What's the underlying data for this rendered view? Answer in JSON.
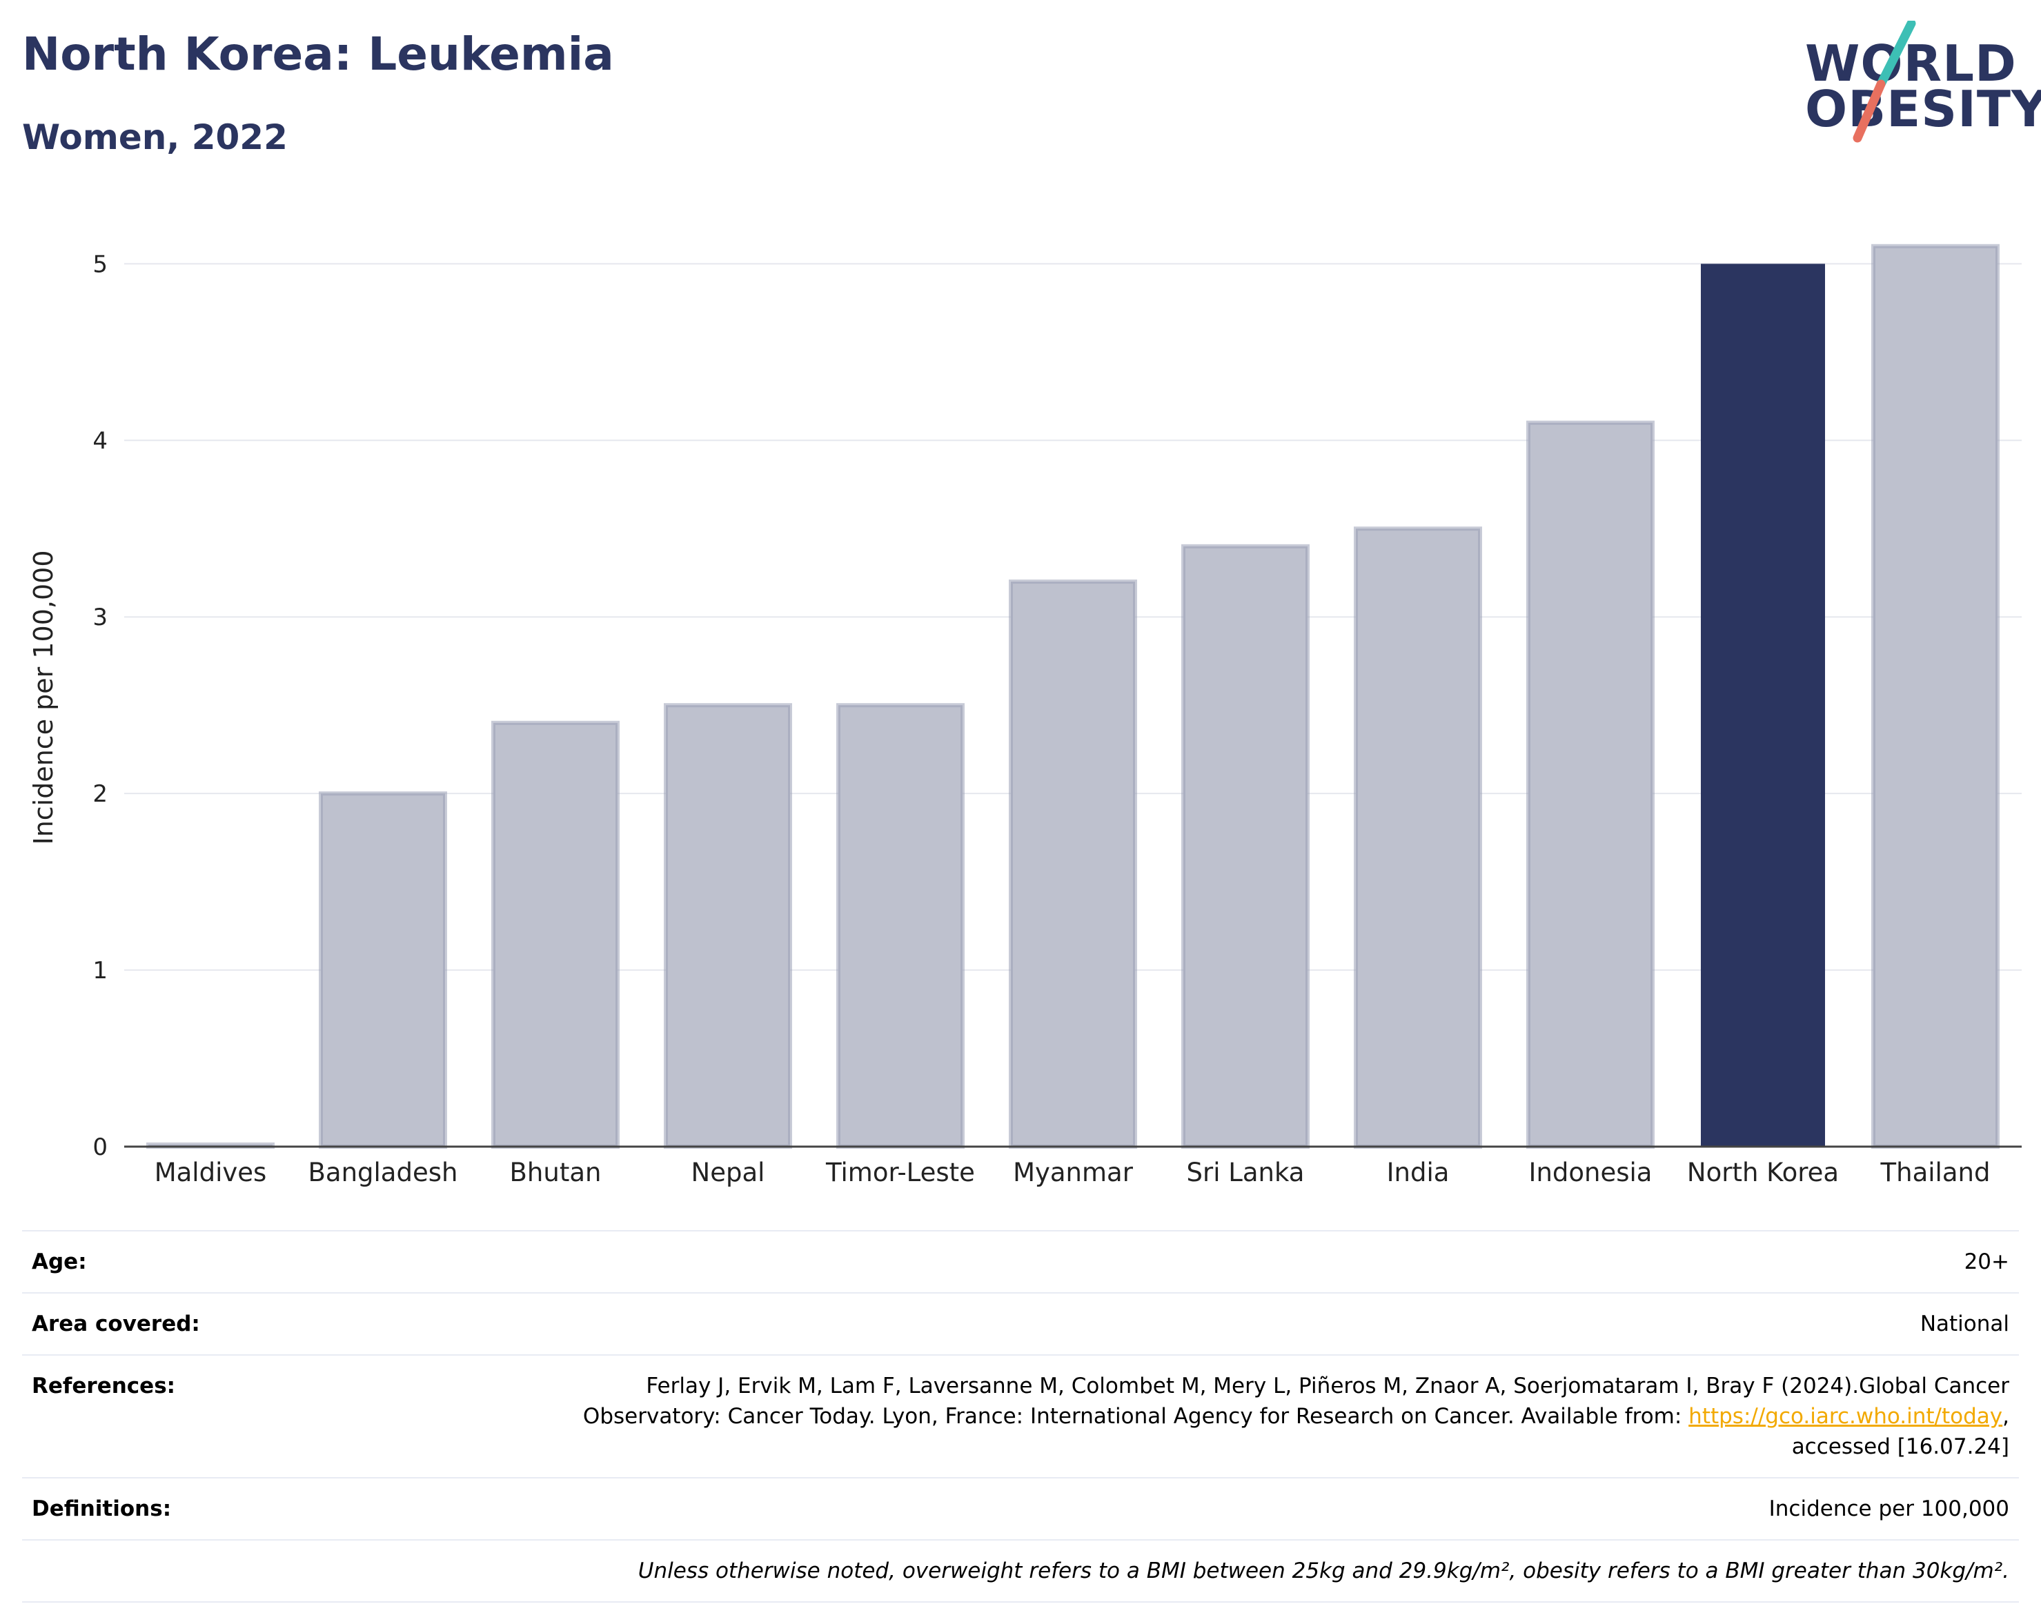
{
  "header": {
    "title": "North Korea: Leukemia",
    "subtitle": "Women, 2022"
  },
  "logo": {
    "line1": "WORLD",
    "line2": "OBESITY",
    "colors": {
      "text": "#2b3560",
      "slash_top": "#3dbfb5",
      "slash_bottom": "#e8705f"
    }
  },
  "chart_data": {
    "type": "bar",
    "categories": [
      "Maldives",
      "Bangladesh",
      "Bhutan",
      "Nepal",
      "Timor-Leste",
      "Myanmar",
      "Sri Lanka",
      "India",
      "Indonesia",
      "North Korea",
      "Thailand"
    ],
    "values": [
      0.0,
      2.0,
      2.4,
      2.5,
      2.5,
      3.2,
      3.4,
      3.5,
      4.1,
      5.0,
      5.1
    ],
    "highlight": "North Korea",
    "ylabel": "Incidence per 100,000",
    "xlabel": "",
    "ylim": [
      0,
      5.4
    ],
    "yticks": [
      "0",
      "1",
      "2",
      "3",
      "4",
      "5"
    ],
    "grid": true,
    "colors": {
      "bar": "#bec1ce",
      "bar_border": "#9aa0b6",
      "highlight": "#2b3560",
      "grid": "#e6e8ee",
      "axis": "#444444"
    }
  },
  "info": {
    "age": {
      "label": "Age:",
      "value": "20+"
    },
    "area": {
      "label": "Area covered:",
      "value": "National"
    },
    "references": {
      "label": "References:",
      "text1": "Ferlay J, Ervik M, Lam F, Laversanne M, Colombet M, Mery L, Piñeros M, Znaor A, Soerjomataram I, Bray F (2024).Global Cancer",
      "text2": "Observatory: Cancer Today. Lyon, France: International Agency for Research on Cancer. Available from: ",
      "link": "https://gco.iarc.who.int/today",
      "text3": ",",
      "text4": "accessed [16.07.24]"
    },
    "definitions": {
      "label": "Definitions:",
      "value": "Incidence per 100,000"
    },
    "note": "Unless otherwise noted, overweight refers to a BMI between 25kg and 29.9kg/m², obesity refers to a BMI greater than 30kg/m²."
  }
}
